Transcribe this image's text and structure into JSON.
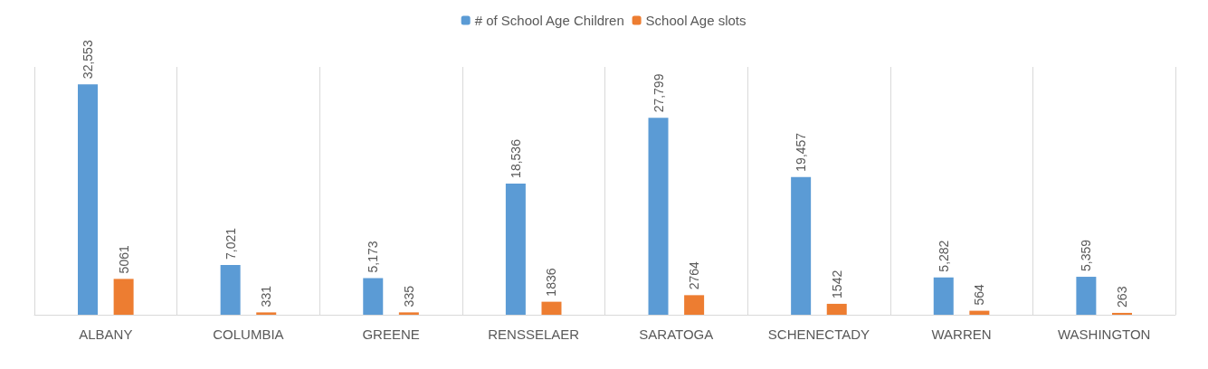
{
  "chart_data": {
    "type": "bar",
    "categories": [
      "ALBANY",
      "COLUMBIA",
      "GREENE",
      "RENSSELAER",
      "SARATOGA",
      "SCHENECTADY",
      "WARREN",
      "WASHINGTON"
    ],
    "series": [
      {
        "name": "# of School Age Children",
        "color": "#5b9bd5",
        "values": [
          32553,
          7021,
          5173,
          18536,
          27799,
          19457,
          5282,
          5359
        ],
        "value_labels": [
          "32,553",
          "7,021",
          "5,173",
          "18,536",
          "27,799",
          "19,457",
          "5,282",
          "5,359"
        ]
      },
      {
        "name": "School Age slots",
        "color": "#ed7d31",
        "values": [
          5061,
          331,
          335,
          1836,
          2764,
          1542,
          564,
          263
        ],
        "value_labels": [
          "5061",
          "331",
          "335",
          "1836",
          "2764",
          "1542",
          "564",
          "263"
        ]
      }
    ],
    "legend": "top",
    "grid": "x",
    "tick_labels": "x"
  }
}
